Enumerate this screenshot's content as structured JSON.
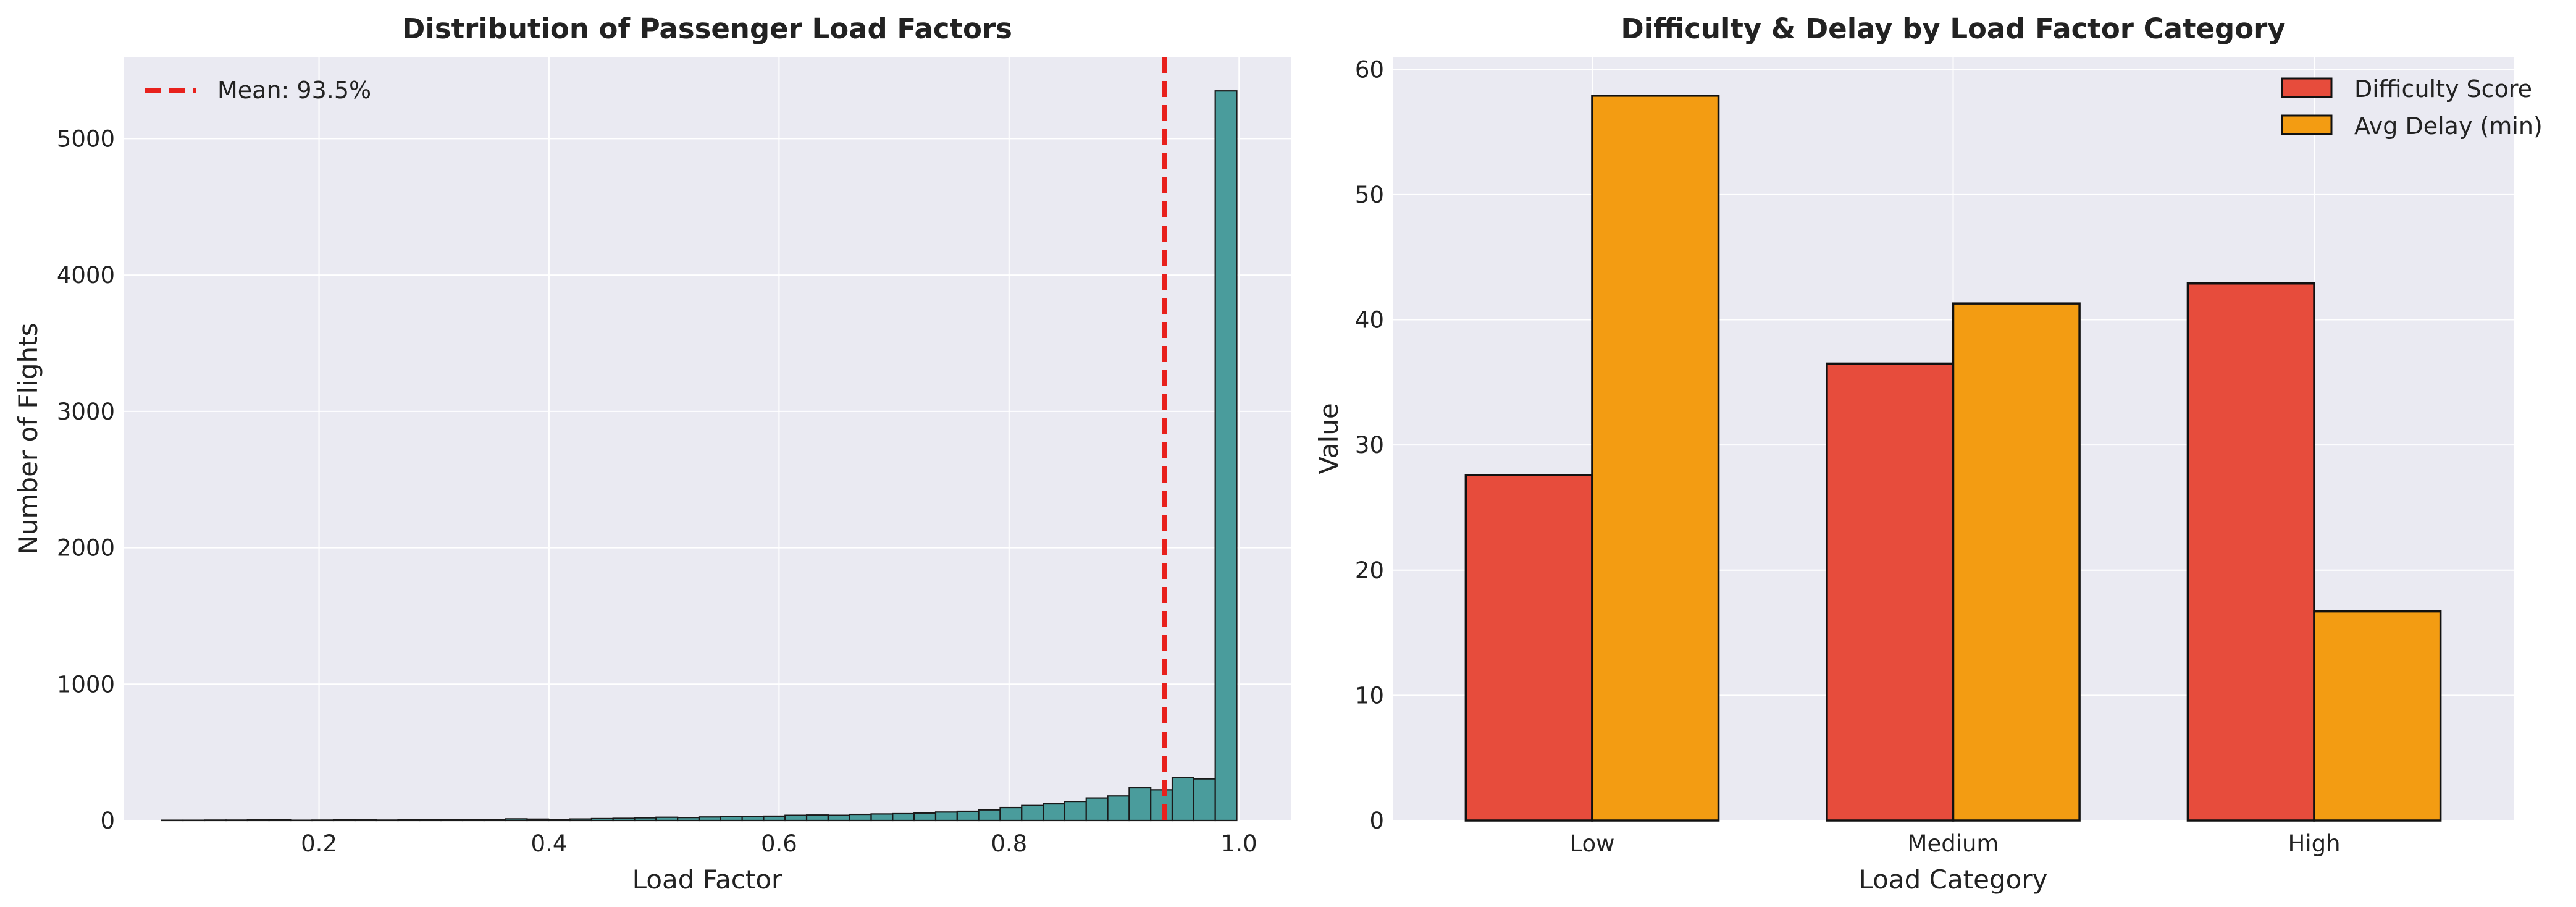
{
  "chart_data": [
    {
      "type": "bar",
      "subtype": "histogram",
      "title": "Distribution of Passenger Load Factors",
      "xlabel": "Load Factor",
      "ylabel": "Number of Flights",
      "xlim": [
        0.03,
        1.045
      ],
      "ylim": [
        0,
        5600
      ],
      "xticks": [
        0.2,
        0.4,
        0.6,
        0.8,
        1.0
      ],
      "xtick_labels": [
        "0.2",
        "0.4",
        "0.6",
        "0.8",
        "1.0"
      ],
      "yticks": [
        0,
        1000,
        2000,
        3000,
        4000,
        5000
      ],
      "ytick_labels": [
        "0",
        "1000",
        "2000",
        "3000",
        "4000",
        "5000"
      ],
      "grid": true,
      "legend_position": "top-left",
      "bar_color": "#4a9c9c",
      "bin_edges": [
        0.063,
        0.0817,
        0.1004,
        0.1191,
        0.1378,
        0.1565,
        0.1752,
        0.1939,
        0.2126,
        0.2313,
        0.25,
        0.2687,
        0.2874,
        0.3061,
        0.3248,
        0.3435,
        0.3622,
        0.3809,
        0.3996,
        0.4183,
        0.437,
        0.4557,
        0.4744,
        0.4931,
        0.5118,
        0.5305,
        0.5492,
        0.5679,
        0.5866,
        0.6053,
        0.624,
        0.6427,
        0.6614,
        0.6801,
        0.6988,
        0.7175,
        0.7362,
        0.7549,
        0.7736,
        0.7923,
        0.811,
        0.8297,
        0.8484,
        0.8671,
        0.8858,
        0.9045,
        0.9232,
        0.9419,
        0.9606,
        0.9793,
        0.998
      ],
      "counts": [
        2,
        2,
        3,
        3,
        4,
        6,
        2,
        3,
        5,
        4,
        3,
        5,
        6,
        6,
        8,
        8,
        12,
        10,
        8,
        11,
        14,
        16,
        20,
        24,
        22,
        26,
        30,
        28,
        32,
        38,
        40,
        38,
        45,
        48,
        50,
        55,
        62,
        68,
        78,
        95,
        110,
        122,
        140,
        165,
        180,
        240,
        225,
        315,
        305,
        5350
      ],
      "mean_line": {
        "x": 0.935,
        "label": "Mean: 93.5%",
        "color": "#e8211d"
      }
    },
    {
      "type": "bar",
      "title": "Difficulty & Delay by Load Factor Category",
      "xlabel": "Load Category",
      "ylabel": "Value",
      "categories": [
        "Low",
        "Medium",
        "High"
      ],
      "ylim": [
        0,
        61
      ],
      "yticks": [
        0,
        10,
        20,
        30,
        40,
        50,
        60
      ],
      "ytick_labels": [
        "0",
        "10",
        "20",
        "30",
        "40",
        "50",
        "60"
      ],
      "grid": true,
      "legend_position": "top-right",
      "series": [
        {
          "name": "Difficulty Score",
          "values": [
            27.6,
            36.5,
            42.9
          ],
          "color": "#e74c3c"
        },
        {
          "name": "Avg Delay (min)",
          "values": [
            57.9,
            41.3,
            16.7
          ],
          "color": "#f39c12"
        }
      ]
    }
  ]
}
